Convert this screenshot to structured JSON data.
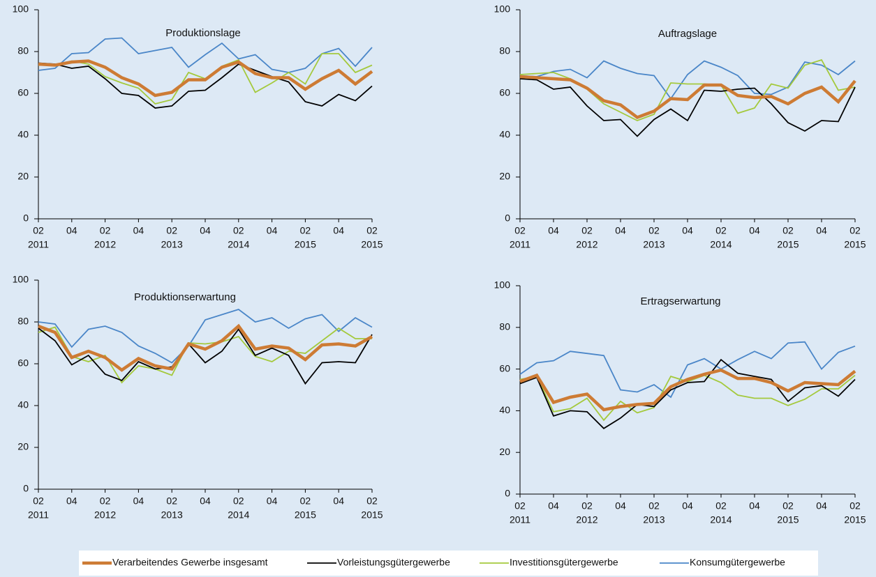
{
  "chart_data": [
    {
      "type": "line",
      "title": "Produktionslage",
      "categories": [
        "02",
        null,
        "04",
        null,
        "02",
        null,
        "04",
        null,
        "02",
        null,
        "04",
        null,
        "02",
        null,
        "04",
        null,
        "02",
        null,
        "04",
        null,
        "02"
      ],
      "x_years": [
        "2011",
        null,
        null,
        null,
        "2012",
        null,
        null,
        null,
        "2013",
        null,
        null,
        null,
        "2014",
        null,
        null,
        null,
        "2015",
        null,
        null,
        null,
        "2015"
      ],
      "ylim": [
        0,
        100
      ],
      "yticks": [
        0,
        20,
        40,
        60,
        80,
        100
      ],
      "legend": "bottom",
      "series": [
        {
          "name": "Verarbeitendes Gewerbe insgesamt",
          "color": "#cd7b34",
          "values": [
            74,
            73.5,
            75,
            75.5,
            72.5,
            67.5,
            64.5,
            59,
            60.5,
            66.5,
            66.5,
            72.5,
            75,
            69.5,
            67.5,
            67.5,
            62,
            67,
            71,
            64.5,
            70.5
          ]
        },
        {
          "name": "Vorleistungsgütergewerbe",
          "color": "#000000",
          "values": [
            74.5,
            74,
            72,
            73,
            67,
            60,
            59,
            53,
            54,
            61,
            61.5,
            67.5,
            74,
            71,
            68,
            65.5,
            56,
            54,
            59.5,
            56.5,
            63.5
          ]
        },
        {
          "name": "Investitionsgütergewerbe",
          "color": "#a4c93c",
          "values": [
            73.5,
            73.5,
            75.5,
            74,
            68,
            65,
            62.5,
            55,
            57,
            70,
            67,
            73,
            76,
            60.5,
            65,
            70,
            64.5,
            79,
            79,
            70,
            73.5
          ]
        },
        {
          "name": "Konsumgütergewerbe",
          "color": "#4a86c8",
          "values": [
            71,
            72,
            79,
            79.5,
            86,
            86.5,
            79,
            80.5,
            82,
            72.5,
            78.5,
            84,
            76.5,
            78.5,
            71.5,
            70,
            72,
            79,
            81.5,
            73,
            82
          ]
        }
      ]
    },
    {
      "type": "line",
      "title": "Auftragslage",
      "categories": [
        "02",
        null,
        "04",
        null,
        "02",
        null,
        "04",
        null,
        "02",
        null,
        "04",
        null,
        "02",
        null,
        "04",
        null,
        "02",
        null,
        "04",
        null,
        "02"
      ],
      "x_years": [
        "2011",
        null,
        null,
        null,
        "2012",
        null,
        null,
        null,
        "2013",
        null,
        null,
        null,
        "2014",
        null,
        null,
        null,
        "2015",
        null,
        null,
        null,
        "2015"
      ],
      "ylim": [
        0,
        100
      ],
      "yticks": [
        0,
        20,
        40,
        60,
        80,
        100
      ],
      "series": [
        {
          "name": "Verarbeitendes Gewerbe insgesamt",
          "color": "#cd7b34",
          "values": [
            68,
            67.5,
            67,
            66.5,
            62.5,
            56.5,
            54.5,
            48.5,
            51.5,
            57.5,
            57,
            64,
            64,
            59,
            58,
            58.5,
            55,
            60,
            63,
            56,
            66
          ]
        },
        {
          "name": "Vorleistungsgütergewerbe",
          "color": "#000000",
          "values": [
            67,
            66.5,
            62,
            63,
            54,
            47,
            47.5,
            39.5,
            47.5,
            52.5,
            47,
            61.5,
            61,
            62,
            62.5,
            55,
            46,
            42,
            47,
            46.5,
            63
          ]
        },
        {
          "name": "Investitionsgütergewerbe",
          "color": "#a4c93c",
          "values": [
            69,
            69.5,
            70,
            67,
            62,
            55,
            51,
            47,
            50,
            65,
            64.5,
            64.5,
            64,
            50.5,
            53,
            64.5,
            62.5,
            73.5,
            76,
            61.5,
            63
          ]
        },
        {
          "name": "Konsumgütergewerbe",
          "color": "#4a86c8",
          "values": [
            68.5,
            68,
            70.5,
            71.5,
            67.5,
            75.5,
            72,
            69.5,
            68.5,
            57.5,
            69,
            75.5,
            72.5,
            68.5,
            60,
            59.5,
            63,
            75,
            73.5,
            69,
            75.5
          ]
        }
      ]
    },
    {
      "type": "line",
      "title": "Produktionserwartung",
      "categories": [
        "02",
        null,
        "04",
        null,
        "02",
        null,
        "04",
        null,
        "02",
        null,
        "04",
        null,
        "02",
        null,
        "04",
        null,
        "02",
        null,
        "04",
        null,
        "02"
      ],
      "x_years": [
        "2011",
        null,
        null,
        null,
        "2012",
        null,
        null,
        null,
        "2013",
        null,
        null,
        null,
        "2014",
        null,
        null,
        null,
        "2015",
        null,
        null,
        null,
        "2015"
      ],
      "ylim": [
        0,
        100
      ],
      "yticks": [
        0,
        20,
        40,
        60,
        80,
        100
      ],
      "series": [
        {
          "name": "Verarbeitendes Gewerbe insgesamt",
          "color": "#cd7b34",
          "values": [
            78,
            75,
            63,
            66,
            63,
            57,
            62.5,
            59,
            57.5,
            69.5,
            67,
            71,
            78,
            67,
            68.5,
            67.5,
            62,
            69,
            69.5,
            68.5,
            73
          ]
        },
        {
          "name": "Vorleistungsgütergewerbe",
          "color": "#000000",
          "values": [
            77,
            71,
            59.5,
            64,
            55,
            52,
            61,
            57.5,
            58.5,
            69.5,
            60.5,
            66,
            76.5,
            64,
            67.5,
            64,
            50.5,
            60.5,
            61,
            60.5,
            74
          ]
        },
        {
          "name": "Investitionsgütergewerbe",
          "color": "#a4c93c",
          "values": [
            75,
            77.5,
            63.5,
            61,
            64,
            51,
            59,
            57.5,
            54.5,
            70,
            69.5,
            70.5,
            73,
            63.5,
            61,
            66,
            65,
            71,
            77,
            72,
            72
          ]
        },
        {
          "name": "Konsumgütergewerbe",
          "color": "#4a86c8",
          "values": [
            80,
            79,
            68,
            76.5,
            78,
            75,
            68.5,
            65,
            60.5,
            68.5,
            81,
            83.5,
            86,
            80,
            82,
            77,
            81.5,
            83.5,
            75.5,
            82,
            77.5
          ]
        }
      ]
    },
    {
      "type": "line",
      "title": "Ertragserwartung",
      "categories": [
        "02",
        null,
        "04",
        null,
        "02",
        null,
        "04",
        null,
        "02",
        null,
        "04",
        null,
        "02",
        null,
        "04",
        null,
        "02",
        null,
        "04",
        null,
        "02"
      ],
      "x_years": [
        "2011",
        null,
        null,
        null,
        "2012",
        null,
        null,
        null,
        "2013",
        null,
        null,
        null,
        "2014",
        null,
        null,
        null,
        "2015",
        null,
        null,
        null,
        "2015"
      ],
      "ylim": [
        0,
        100
      ],
      "yticks": [
        0,
        20,
        40,
        60,
        80,
        100
      ],
      "series": [
        {
          "name": "Verarbeitendes Gewerbe insgesamt",
          "color": "#cd7b34",
          "values": [
            54,
            57,
            44,
            46.5,
            48,
            40.5,
            42,
            43,
            43.5,
            51.5,
            55,
            57.5,
            59.5,
            55.5,
            55.5,
            53.5,
            49.5,
            53.5,
            53,
            52.5,
            59
          ]
        },
        {
          "name": "Vorleistungsgütergewerbe",
          "color": "#000000",
          "values": [
            53,
            56,
            37.5,
            40,
            39.5,
            31.5,
            36.5,
            43,
            42,
            50,
            53.5,
            54,
            64.5,
            58,
            56.5,
            55,
            44.5,
            51,
            52,
            47,
            55
          ]
        },
        {
          "name": "Investitionsgütergewerbe",
          "color": "#a4c93c",
          "values": [
            55,
            56.5,
            39.5,
            41,
            46,
            35.5,
            44.5,
            39,
            41.5,
            56.5,
            54,
            57,
            53.5,
            47.5,
            46,
            46,
            42.5,
            45.5,
            50.5,
            50.5,
            57
          ]
        },
        {
          "name": "Konsumgütergewerbe",
          "color": "#4a86c8",
          "values": [
            57.5,
            63,
            64,
            68.5,
            67.5,
            66.5,
            50,
            49,
            52.5,
            46.5,
            62,
            65,
            60,
            64.5,
            68.5,
            65,
            72.5,
            73,
            60,
            68,
            71
          ]
        }
      ]
    }
  ]
}
